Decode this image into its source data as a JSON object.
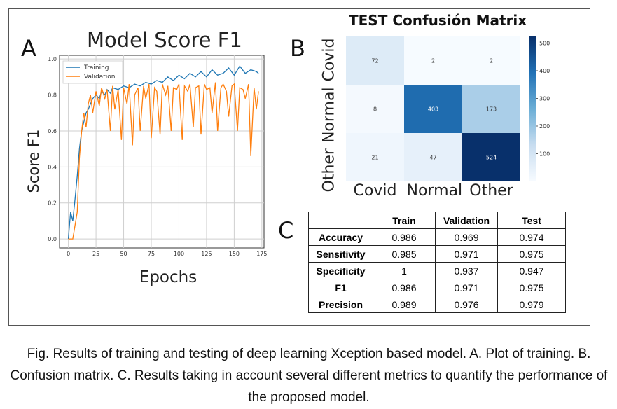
{
  "panels": {
    "a_label": "A",
    "b_label": "B",
    "c_label": "C"
  },
  "chart_data": [
    {
      "type": "line",
      "title": "Model Score F1",
      "xlabel": "Epochs",
      "ylabel": "Score F1",
      "xlim": [
        -8,
        177
      ],
      "ylim": [
        -0.05,
        1.02
      ],
      "xticks": [
        0,
        25,
        50,
        75,
        100,
        125,
        150,
        175
      ],
      "yticks": [
        0.0,
        0.2,
        0.4,
        0.6,
        0.8,
        1.0
      ],
      "ytick_labels": [
        "0.0",
        "0.2",
        "0.4",
        "0.6",
        "0.8",
        "1.0"
      ],
      "grid": true,
      "legend": "top-left",
      "series": [
        {
          "name": "Training",
          "color": "#1f77b4",
          "x": [
            0,
            2,
            4,
            6,
            8,
            10,
            12,
            14,
            16,
            18,
            20,
            22,
            25,
            28,
            30,
            33,
            35,
            38,
            40,
            45,
            50,
            55,
            60,
            65,
            70,
            75,
            80,
            85,
            90,
            95,
            100,
            105,
            110,
            115,
            120,
            125,
            130,
            135,
            140,
            145,
            150,
            155,
            160,
            165,
            170,
            172
          ],
          "y": [
            0.0,
            0.15,
            0.1,
            0.22,
            0.35,
            0.5,
            0.6,
            0.65,
            0.7,
            0.72,
            0.75,
            0.78,
            0.8,
            0.78,
            0.82,
            0.8,
            0.83,
            0.81,
            0.84,
            0.83,
            0.85,
            0.84,
            0.86,
            0.85,
            0.87,
            0.86,
            0.88,
            0.87,
            0.9,
            0.88,
            0.91,
            0.89,
            0.92,
            0.9,
            0.93,
            0.9,
            0.94,
            0.91,
            0.92,
            0.95,
            0.91,
            0.96,
            0.92,
            0.94,
            0.93,
            0.92
          ]
        },
        {
          "name": "Validation",
          "color": "#ff7f0e",
          "x": [
            0,
            4,
            8,
            10,
            12,
            14,
            16,
            18,
            20,
            22,
            25,
            28,
            30,
            33,
            35,
            38,
            40,
            42,
            45,
            48,
            50,
            53,
            55,
            58,
            60,
            63,
            65,
            68,
            70,
            73,
            75,
            78,
            80,
            83,
            85,
            88,
            90,
            93,
            95,
            98,
            100,
            103,
            105,
            108,
            110,
            113,
            115,
            118,
            120,
            123,
            125,
            128,
            130,
            133,
            135,
            138,
            140,
            143,
            145,
            148,
            150,
            153,
            155,
            158,
            160,
            163,
            165,
            168,
            170,
            172
          ],
          "y": [
            0.0,
            0.0,
            0.15,
            0.45,
            0.6,
            0.7,
            0.62,
            0.75,
            0.8,
            0.7,
            0.82,
            0.74,
            0.84,
            0.78,
            0.83,
            0.6,
            0.85,
            0.72,
            0.83,
            0.55,
            0.84,
            0.75,
            0.86,
            0.52,
            0.8,
            0.84,
            0.6,
            0.85,
            0.78,
            0.86,
            0.56,
            0.84,
            0.82,
            0.58,
            0.86,
            0.8,
            0.85,
            0.6,
            0.84,
            0.83,
            0.86,
            0.55,
            0.85,
            0.82,
            0.86,
            0.62,
            0.84,
            0.85,
            0.58,
            0.86,
            0.83,
            0.84,
            0.7,
            0.87,
            0.6,
            0.84,
            0.86,
            0.82,
            0.68,
            0.85,
            0.86,
            0.6,
            0.84,
            0.83,
            0.78,
            0.86,
            0.46,
            0.84,
            0.72,
            0.82
          ]
        }
      ]
    },
    {
      "type": "heatmap",
      "title": "TEST Confusión Matrix",
      "row_labels": [
        "Covid",
        "Normal",
        "Other"
      ],
      "col_labels": [
        "Covid",
        "Normal",
        "Other"
      ],
      "values": [
        [
          72,
          2,
          2
        ],
        [
          8,
          403,
          173
        ],
        [
          21,
          47,
          524
        ]
      ],
      "colorbar_ticks": [
        100,
        200,
        300,
        400,
        500
      ],
      "vmin": 0,
      "vmax": 524
    },
    {
      "type": "table",
      "columns": [
        "",
        "Train",
        "Validation",
        "Test"
      ],
      "rows": [
        {
          "metric": "Accuracy",
          "values": [
            "0.986",
            "0.969",
            "0.974"
          ]
        },
        {
          "metric": "Sensitivity",
          "values": [
            "0.985",
            "0.971",
            "0.975"
          ]
        },
        {
          "metric": "Specificity",
          "values": [
            "1",
            "0.937",
            "0.947"
          ]
        },
        {
          "metric": "F1",
          "values": [
            "0.986",
            "0.971",
            "0.975"
          ]
        },
        {
          "metric": "Precision",
          "values": [
            "0.989",
            "0.976",
            "0.979"
          ]
        }
      ]
    }
  ],
  "caption": "Fig. Results of training and testing of deep learning Xception based model. A. Plot of training. B. Confusion matrix. C. Results taking in account several different metrics to quantify the performance of the proposed model."
}
